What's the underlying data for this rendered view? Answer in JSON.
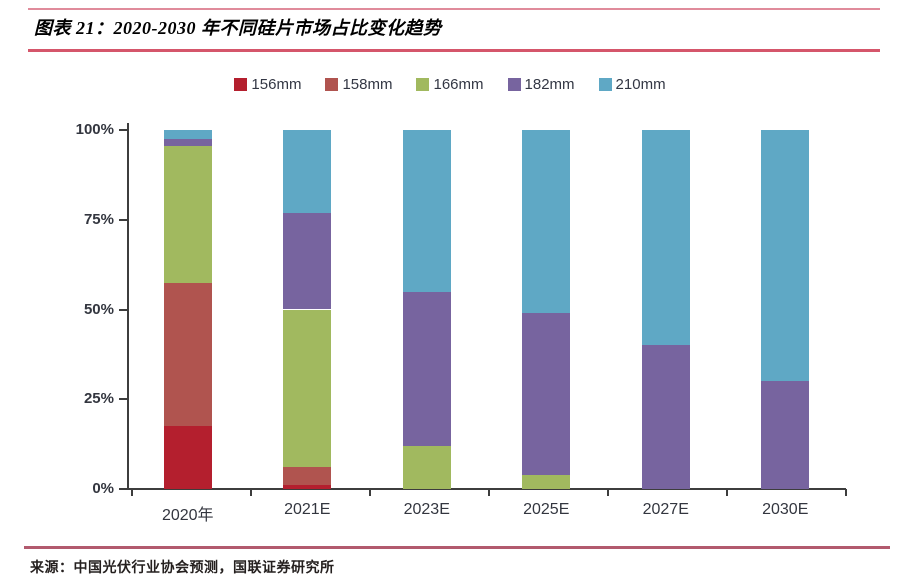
{
  "header": {
    "title": "图表 21：2020-2030 年不同硅片市场占比变化趋势"
  },
  "footer": {
    "source": "来源：中国光伏行业协会预测，国联证券研究所"
  },
  "colors": {
    "axis": "#3d3d3d",
    "header_rule": "#d5566b",
    "footer_rule": "#b25a6e"
  },
  "chart_data": {
    "type": "bar",
    "stacked": true,
    "title": "2020-2030 年不同硅片市场占比变化趋势",
    "xlabel": "",
    "ylabel": "",
    "ylim": [
      0,
      100
    ],
    "grid": false,
    "legend_position": "top",
    "categories": [
      "2020年",
      "2021E",
      "2023E",
      "2025E",
      "2027E",
      "2030E"
    ],
    "yticks": [
      {
        "value": 0,
        "label": "0%"
      },
      {
        "value": 25,
        "label": "25%"
      },
      {
        "value": 50,
        "label": "50%"
      },
      {
        "value": 75,
        "label": "75%"
      },
      {
        "value": 100,
        "label": "100%"
      }
    ],
    "series": [
      {
        "name": "156mm",
        "color": "#b41f2e",
        "values": [
          17.5,
          1,
          0,
          0,
          0,
          0
        ]
      },
      {
        "name": "158mm",
        "color": "#b0544f",
        "values": [
          40,
          5,
          0,
          0,
          0,
          0
        ]
      },
      {
        "name": "166mm",
        "color": "#a1b95f",
        "values": [
          38,
          44,
          12,
          4,
          0,
          0
        ]
      },
      {
        "name": "182mm",
        "color": "#77649f",
        "values": [
          2,
          27,
          43,
          45,
          40,
          30
        ]
      },
      {
        "name": "210mm",
        "color": "#5fa8c5",
        "values": [
          2.5,
          23,
          45,
          51,
          60,
          70
        ]
      }
    ]
  }
}
